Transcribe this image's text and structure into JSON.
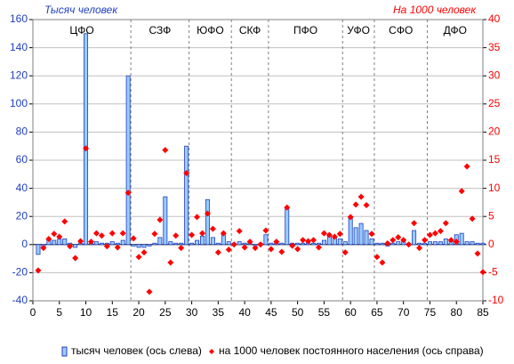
{
  "chart_data": {
    "type": "bar",
    "y_label": "Тысяч человек",
    "y2_label": "На 1000 человек",
    "x": [
      1,
      2,
      3,
      4,
      5,
      6,
      7,
      8,
      9,
      10,
      11,
      12,
      13,
      14,
      15,
      16,
      17,
      18,
      19,
      20,
      21,
      22,
      23,
      24,
      25,
      26,
      27,
      28,
      29,
      30,
      31,
      32,
      33,
      34,
      35,
      36,
      37,
      38,
      39,
      40,
      41,
      42,
      43,
      44,
      45,
      46,
      47,
      48,
      49,
      50,
      51,
      52,
      53,
      54,
      55,
      56,
      57,
      58,
      59,
      60,
      61,
      62,
      63,
      64,
      65,
      66,
      67,
      68,
      69,
      70,
      71,
      72,
      73,
      74,
      75,
      76,
      77,
      78,
      79,
      80,
      81,
      82,
      83,
      84,
      85
    ],
    "series": [
      {
        "name": "тысяч человек (ось слева)",
        "type": "bar",
        "color": "#99ccff",
        "edge": "#1f3fbf",
        "values": [
          -7,
          -2,
          4,
          3,
          4,
          4,
          1,
          -2,
          1,
          150,
          1,
          2,
          1,
          1,
          2,
          1,
          3,
          120,
          -1,
          -2,
          -2,
          -1,
          1,
          5,
          34,
          2,
          1,
          1,
          70,
          1,
          3,
          6,
          32,
          5,
          1,
          7,
          2,
          1,
          2,
          1,
          1,
          -1,
          1,
          7,
          1,
          1,
          1,
          26,
          1,
          1,
          1,
          2,
          1,
          1,
          3,
          7,
          6,
          4,
          2,
          20,
          12,
          15,
          10,
          4,
          1,
          1,
          -1,
          1,
          2,
          2,
          1,
          10,
          1,
          1,
          2,
          2,
          2,
          4,
          3,
          7,
          8,
          2,
          2,
          1,
          1
        ]
      },
      {
        "name": "на 1000 человек постоянного населения (ось справа)",
        "type": "scatter",
        "axis": "y2",
        "color": "#ff0000",
        "values": [
          -4.6,
          -0.6,
          1,
          1.9,
          1.4,
          4.1,
          -0.3,
          -2.4,
          0.6,
          17.1,
          0.5,
          2,
          1.6,
          -0.3,
          2,
          -0.5,
          2,
          9.2,
          1.1,
          -2.2,
          -1.4,
          -8.4,
          1.9,
          4.4,
          16.8,
          -3.2,
          1.6,
          -0.6,
          12.7,
          1.7,
          4.9,
          2,
          5.5,
          2.8,
          -1.4,
          2,
          -0.9,
          0,
          2.4,
          -0.5,
          0.5,
          -0.6,
          0,
          2.5,
          -0.8,
          0.5,
          -1.3,
          6.6,
          -0.2,
          -0.8,
          0.8,
          0.6,
          0.8,
          -0.5,
          2,
          1.7,
          1.4,
          1.9,
          -1.4,
          4.9,
          7.1,
          8.5,
          7,
          1.9,
          -2.2,
          -3.2,
          0.2,
          0.8,
          1.3,
          0.8,
          0,
          3.8,
          -0.6,
          0.8,
          1.7,
          2,
          2.4,
          3.8,
          0.8,
          0.5,
          9.5,
          13.9,
          4.6,
          -1.6,
          -4.9
        ]
      }
    ],
    "regions": [
      "ЦФО",
      "СЗФ",
      "ЮФО",
      "СКФ",
      "ПФО",
      "УФО",
      "СФО",
      "ДФО"
    ],
    "region_breaks": [
      18.5,
      29.5,
      37.5,
      44.5,
      58.5,
      64.5,
      74.5
    ],
    "xlim": [
      0,
      85
    ],
    "xticks": [
      0,
      5,
      10,
      15,
      20,
      25,
      30,
      35,
      40,
      45,
      50,
      55,
      60,
      65,
      70,
      75,
      80,
      85
    ],
    "ylim": [
      -40,
      160
    ],
    "yticks": [
      -40,
      -20,
      0,
      20,
      40,
      60,
      80,
      100,
      120,
      140,
      160
    ],
    "y2lim": [
      -10,
      40
    ],
    "y2ticks": [
      -10,
      -5,
      0,
      5,
      10,
      15,
      20,
      25,
      30,
      35,
      40
    ],
    "grid": true
  }
}
